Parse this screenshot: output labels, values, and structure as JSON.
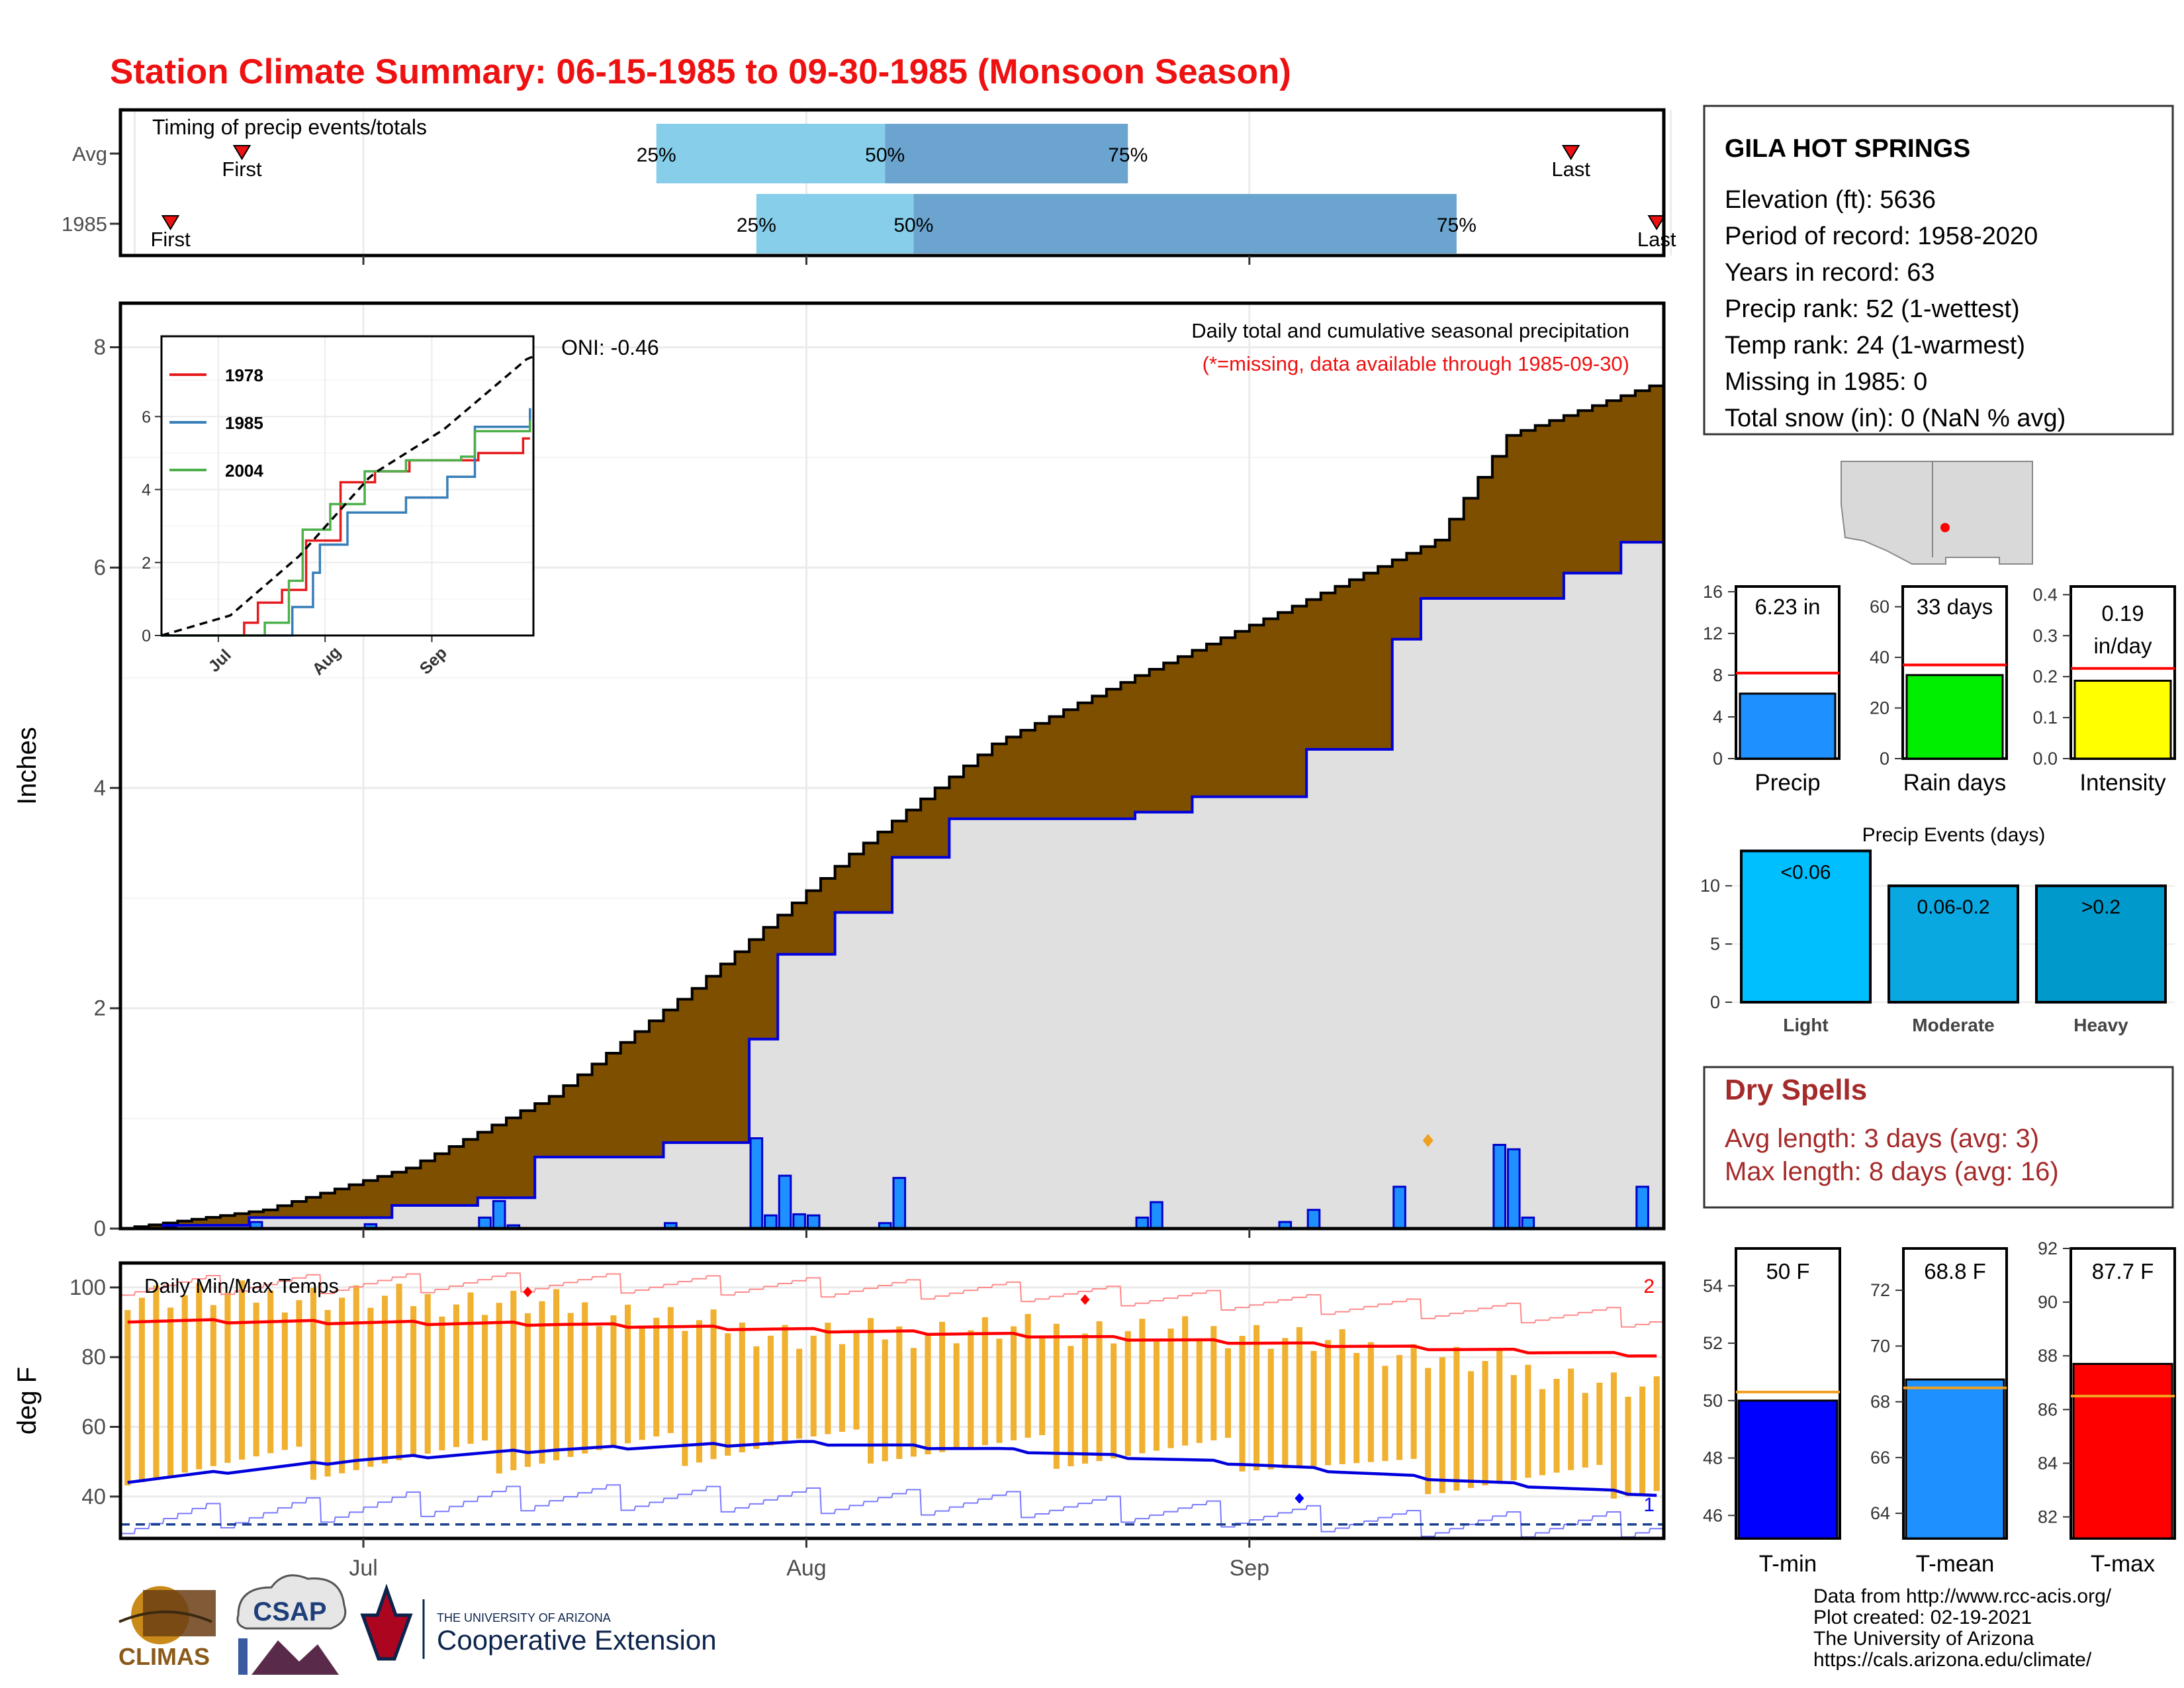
{
  "title": "Station Climate Summary: 06-15-1985 to 09-30-1985 (Monsoon Season)",
  "colors": {
    "title": "#ee1111",
    "brown": "#7f4f00",
    "gray_area": "#e0e0e0",
    "blue_line": "#0000dd",
    "bar_blue": "#1e90ff",
    "light_bar": "#00bfff",
    "mod_bar": "#0aa8e0",
    "heavy_bar": "#0099cc",
    "q_light": "#87ceeb",
    "q_dark": "#6ba5cf",
    "rain_green": "#00ee00",
    "intensity_yellow": "#ffff00",
    "temp_orange": "#f0b030",
    "tmax_red": "#ff0000",
    "tmean_blue": "#1e90ff",
    "tmin_blue": "#0000ff",
    "dry_spell": "#a52a2a"
  },
  "timing": {
    "title": "Timing of precip events/totals",
    "rows": [
      {
        "label": "Avg",
        "first_label": "First",
        "last_label": "Last",
        "first": "06-23",
        "q25": "07-22",
        "q50": "08-07",
        "q75": "08-24",
        "last": "09-24"
      },
      {
        "label": "1985",
        "first_label": "First",
        "last_label": "Last",
        "first": "06-18",
        "q25": "07-29",
        "q50": "08-09",
        "q75": "09-16",
        "last": "09-30"
      }
    ],
    "pct_labels": [
      "25%",
      "50%",
      "75%"
    ]
  },
  "main": {
    "title": "Daily total and cumulative seasonal precipitation",
    "note": "(*=missing, data available through 1985-09-30)",
    "oni": "ONI: -0.46",
    "ylabel": "Inches",
    "yticks": [
      "0",
      "2",
      "4",
      "6",
      "8"
    ],
    "xticks": [
      "Jul",
      "Aug",
      "Sep"
    ]
  },
  "inset": {
    "series": [
      {
        "name": "1978",
        "color": "#e41a1c"
      },
      {
        "name": "1985",
        "color": "#377eb8"
      },
      {
        "name": "2004",
        "color": "#4daf4a"
      }
    ],
    "yticks": [
      "0",
      "2",
      "4",
      "6"
    ],
    "xticks": [
      "Jul",
      "Aug",
      "Sep"
    ]
  },
  "temps": {
    "title": "Daily Min/Max Temps",
    "ylabel": "deg F",
    "yticks": [
      "40",
      "60",
      "80",
      "100"
    ],
    "count_high": "2",
    "count_low": "1"
  },
  "station": {
    "name": "GILA HOT SPRINGS",
    "lines": [
      "Elevation (ft): 5636",
      "Period of record: 1958-2020",
      "Years in record: 63",
      "Precip rank: 52 (1-wettest)",
      "Temp rank: 24 (1-warmest)",
      "Missing in 1985: 0",
      "Total snow (in): 0 (NaN % avg)"
    ]
  },
  "summary_bars": [
    {
      "label": "Precip",
      "value_label": "6.23 in",
      "yticks": [
        "0",
        "4",
        "8",
        "12",
        "16"
      ]
    },
    {
      "label": "Rain days",
      "value_label": "33 days",
      "yticks": [
        "0",
        "20",
        "40",
        "60"
      ]
    },
    {
      "label": "Intensity",
      "value_label": "0.19",
      "value_label2": "in/day",
      "yticks": [
        "0.0",
        "0.1",
        "0.2",
        "0.3",
        "0.4"
      ]
    }
  ],
  "events": {
    "title": "Precip Events (days)",
    "yticks": [
      "0",
      "5",
      "10"
    ],
    "categories": [
      "Light",
      "Moderate",
      "Heavy"
    ],
    "bar_labels": [
      "<0.06",
      "0.06-0.2",
      ">0.2"
    ]
  },
  "dry_spells": {
    "title": "Dry Spells",
    "avg_line": "Avg length: 3 days (avg: 3)",
    "max_line": "Max length: 8 days (avg: 16)"
  },
  "temp_bars": [
    {
      "label": "T-min",
      "value_label": "50 F",
      "yticks": [
        "46",
        "48",
        "50",
        "52",
        "54"
      ]
    },
    {
      "label": "T-mean",
      "value_label": "68.8 F",
      "yticks": [
        "64",
        "66",
        "68",
        "70",
        "72"
      ]
    },
    {
      "label": "T-max",
      "value_label": "87.7 F",
      "yticks": [
        "82",
        "84",
        "86",
        "88",
        "90",
        "92"
      ]
    }
  ],
  "footer": {
    "lines": [
      "Data from http://www.rcc-acis.org/",
      "Plot created: 02-19-2021",
      "The University of Arizona",
      "https://cals.arizona.edu/climate/"
    ],
    "logo_climas": "CLIMAS",
    "logo_csap": "CSAP",
    "logo_ua_small": "THE UNIVERSITY OF ARIZONA",
    "logo_ua_big": "Cooperative Extension"
  },
  "chart_data": [
    {
      "type": "area",
      "title": "Daily total and cumulative seasonal precipitation",
      "ylabel": "Inches",
      "xlim": [
        "06-15",
        "09-30"
      ],
      "ylim": [
        0,
        8.4
      ],
      "grid": true,
      "series": [
        {
          "name": "average cumulative",
          "x": [
            "06-15",
            "06-25",
            "07-05",
            "07-15",
            "07-25",
            "08-05",
            "08-15",
            "08-25",
            "09-05",
            "09-15",
            "09-20",
            "09-30"
          ],
          "values": [
            0.0,
            0.17,
            0.55,
            1.2,
            2.18,
            3.4,
            4.4,
            5.02,
            5.65,
            6.25,
            7.2,
            7.65
          ]
        },
        {
          "name": "1985 cumulative",
          "x": [
            "06-15",
            "06-18",
            "06-24",
            "07-04",
            "07-10",
            "07-14",
            "07-23",
            "07-29",
            "07-31",
            "08-04",
            "08-08",
            "08-12",
            "08-25",
            "08-29",
            "09-06",
            "09-12",
            "09-14",
            "09-24",
            "09-28",
            "09-30"
          ],
          "values": [
            0.0,
            0.03,
            0.1,
            0.21,
            0.28,
            0.65,
            0.78,
            1.72,
            2.49,
            2.87,
            3.37,
            3.72,
            3.78,
            3.92,
            4.35,
            5.35,
            5.72,
            5.95,
            6.23,
            6.23
          ]
        },
        {
          "name": "1985 daily",
          "x": [
            "06-18",
            "06-24",
            "07-02",
            "07-10",
            "07-11",
            "07-12",
            "07-23",
            "07-29",
            "07-30",
            "07-31",
            "08-01",
            "08-02",
            "08-07",
            "08-08",
            "08-25",
            "08-26",
            "09-04",
            "09-06",
            "09-12",
            "09-19",
            "09-20",
            "09-21",
            "09-29"
          ],
          "values": [
            0.02,
            0.06,
            0.04,
            0.1,
            0.25,
            0.03,
            0.05,
            0.82,
            0.12,
            0.48,
            0.13,
            0.12,
            0.05,
            0.46,
            0.1,
            0.24,
            0.06,
            0.17,
            0.38,
            0.76,
            0.72,
            0.1,
            0.38
          ]
        }
      ]
    },
    {
      "type": "line",
      "title": "",
      "xlim": [
        "06-15",
        "09-30"
      ],
      "ylim": [
        0,
        8.2
      ],
      "series": [
        {
          "name": "1978",
          "x": [
            "06-15",
            "07-09",
            "07-13",
            "07-20",
            "07-27",
            "08-06",
            "08-16",
            "08-26",
            "09-15",
            "09-28",
            "09-30"
          ],
          "values": [
            0.0,
            0.35,
            0.9,
            1.25,
            2.6,
            4.2,
            4.5,
            4.8,
            5.0,
            5.4,
            5.4
          ]
        },
        {
          "name": "1985",
          "x": [
            "06-15",
            "07-23",
            "07-29",
            "07-31",
            "08-08",
            "08-25",
            "09-06",
            "09-14",
            "09-30"
          ],
          "values": [
            0.0,
            0.78,
            1.72,
            2.49,
            3.37,
            3.78,
            4.35,
            5.72,
            6.23
          ]
        },
        {
          "name": "2004",
          "x": [
            "06-15",
            "07-15",
            "07-22",
            "07-26",
            "08-03",
            "08-13",
            "08-25",
            "09-10",
            "09-14",
            "09-30"
          ],
          "values": [
            0.0,
            0.35,
            1.5,
            2.9,
            3.6,
            4.5,
            4.8,
            4.9,
            5.6,
            5.9
          ]
        },
        {
          "name": "average",
          "x": [
            "06-15",
            "07-05",
            "07-25",
            "08-15",
            "09-05",
            "09-30"
          ],
          "values": [
            0.0,
            0.55,
            2.18,
            4.4,
            5.65,
            7.65
          ]
        }
      ]
    },
    {
      "type": "line",
      "title": "Daily Min/Max Temps",
      "ylabel": "deg F",
      "xlim": [
        "06-15",
        "09-30"
      ],
      "ylim": [
        28,
        107
      ],
      "series": [
        {
          "name": "avg max",
          "x": [
            "06-15",
            "07-15",
            "08-15",
            "09-30"
          ],
          "values": [
            90.5,
            89.5,
            86.5,
            80.5
          ]
        },
        {
          "name": "avg min",
          "x": [
            "06-15",
            "07-01",
            "07-15",
            "08-01",
            "08-15",
            "09-01",
            "09-15",
            "09-30"
          ],
          "values": [
            44.5,
            50.5,
            53.5,
            55.5,
            53.5,
            49.5,
            45.0,
            40.5
          ]
        },
        {
          "name": "record max",
          "x": [
            "06-15",
            "07-15",
            "08-15",
            "09-30"
          ],
          "values": [
            100.5,
            101.5,
            99,
            91
          ]
        },
        {
          "name": "record min",
          "x": [
            "06-15",
            "07-15",
            "08-15",
            "09-15",
            "09-30"
          ],
          "values": [
            33,
            40,
            38,
            32,
            32
          ]
        },
        {
          "name": "1985 max",
          "x": [
            "06-15",
            "07-01",
            "07-15",
            "08-01",
            "08-15",
            "09-01",
            "09-15",
            "09-30"
          ],
          "values": [
            98,
            97,
            95,
            86,
            88,
            87,
            80,
            70
          ]
        },
        {
          "name": "1985 min",
          "x": [
            "06-15",
            "07-01",
            "07-15",
            "08-01",
            "08-15",
            "09-01",
            "09-15",
            "09-30"
          ],
          "values": [
            48,
            50,
            52,
            55,
            53,
            52,
            45,
            44
          ]
        }
      ]
    },
    {
      "type": "bar",
      "categories": [
        "Precip",
        "Rain days",
        "Intensity"
      ],
      "series": [
        {
          "name": "1985",
          "values": [
            6.23,
            33,
            0.19
          ]
        },
        {
          "name": "average",
          "values": [
            8.2,
            37,
            0.22
          ]
        }
      ]
    },
    {
      "type": "bar",
      "title": "Precip Events (days)",
      "categories": [
        "Light",
        "Moderate",
        "Heavy"
      ],
      "values": [
        13,
        10,
        10
      ],
      "ylim": [
        0,
        12.4
      ]
    },
    {
      "type": "bar",
      "categories": [
        "T-min",
        "T-mean",
        "T-max"
      ],
      "series": [
        {
          "name": "1985",
          "values": [
            50,
            68.8,
            87.7
          ]
        },
        {
          "name": "average",
          "values": [
            50.3,
            68.5,
            86.5
          ]
        }
      ]
    }
  ]
}
